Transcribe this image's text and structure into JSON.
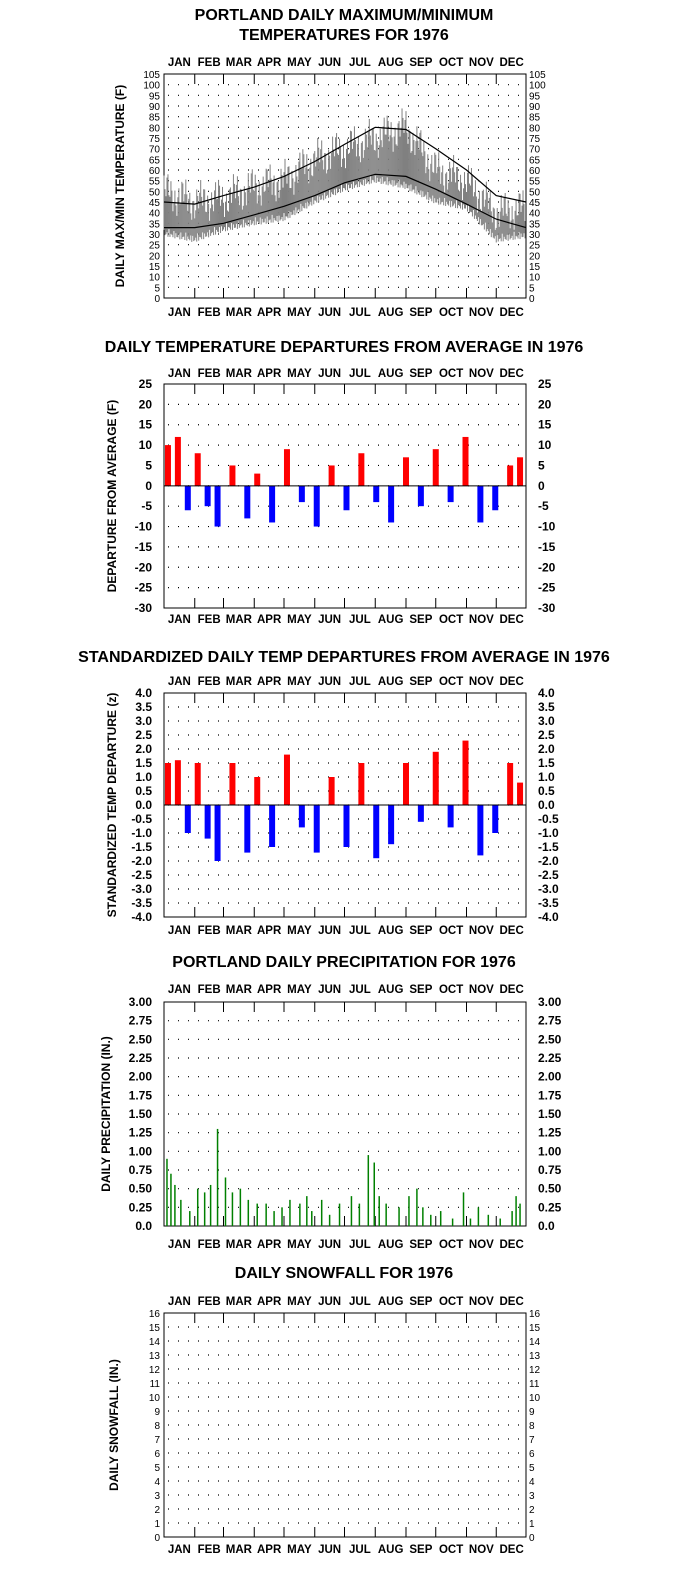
{
  "chart_data": [
    {
      "type": "line",
      "title": "PORTLAND DAILY MAXIMUM/MINIMUM",
      "subtitle": "TEMPERATURES FOR 1976",
      "ylabel": "DAILY MAX/MIN TEMPERATURE (F)",
      "xlabel": "",
      "ylim": [
        0,
        105
      ],
      "yticks": [
        "0",
        "5",
        "10",
        "15",
        "20",
        "25",
        "30",
        "35",
        "40",
        "45",
        "50",
        "55",
        "60",
        "65",
        "70",
        "75",
        "80",
        "85",
        "90",
        "95",
        "100",
        "105"
      ],
      "months": [
        "JAN",
        "FEB",
        "MAR",
        "APR",
        "MAY",
        "JUN",
        "JUL",
        "AUG",
        "SEP",
        "OCT",
        "NOV",
        "DEC"
      ],
      "grid": true,
      "x": [
        1,
        32,
        61,
        92,
        122,
        153,
        183,
        214,
        245,
        275,
        306,
        336,
        366
      ],
      "series": [
        {
          "values": [
            45,
            44,
            48,
            52,
            57,
            64,
            72,
            80,
            79,
            70,
            60,
            48,
            45
          ],
          "color": "#000000",
          "style": "normal-line"
        },
        {
          "values": [
            33,
            33,
            35,
            39,
            43,
            48,
            54,
            58,
            57,
            51,
            44,
            37,
            33
          ],
          "color": "#000000",
          "style": "normal-line"
        },
        {
          "values": [
            50,
            45,
            47,
            52,
            55,
            65,
            70,
            75,
            80,
            60,
            55,
            40,
            42
          ],
          "color": "#808080",
          "style": "band"
        },
        {
          "values": [
            33,
            30,
            35,
            38,
            40,
            48,
            54,
            58,
            55,
            48,
            45,
            30,
            32
          ],
          "color": "#808080",
          "style": "band"
        }
      ],
      "band_color": "#808080"
    },
    {
      "type": "bar",
      "title": "DAILY TEMPERATURE DEPARTURES FROM AVERAGE IN 1976",
      "ylabel": "DEPARTURE FROM AVERAGE (F)",
      "xlabel": "",
      "ylim": [
        -30,
        25
      ],
      "yticks": [
        "-30",
        "-25",
        "-20",
        "-15",
        "-10",
        "-5",
        "0",
        "5",
        "10",
        "15",
        "20",
        "25"
      ],
      "months": [
        "JAN",
        "FEB",
        "MAR",
        "APR",
        "MAY",
        "JUN",
        "JUL",
        "AUG",
        "SEP",
        "OCT",
        "NOV",
        "DEC"
      ],
      "grid": true,
      "x": [
        5,
        15,
        25,
        35,
        45,
        55,
        70,
        85,
        95,
        110,
        125,
        140,
        155,
        170,
        185,
        200,
        215,
        230,
        245,
        260,
        275,
        290,
        305,
        320,
        335,
        350,
        360
      ],
      "values": [
        10,
        12,
        -6,
        8,
        -5,
        -10,
        5,
        -8,
        3,
        -9,
        9,
        -4,
        -10,
        5,
        -6,
        8,
        -4,
        -9,
        7,
        -5,
        9,
        -4,
        12,
        -9,
        -6,
        5,
        7
      ],
      "positive_color": "#ff0000",
      "negative_color": "#0000ff"
    },
    {
      "type": "bar",
      "title": "STANDARDIZED DAILY TEMP DEPARTURES FROM AVERAGE IN 1976",
      "ylabel": "STANDARDIZED TEMP DEPARTURE (z)",
      "xlabel": "",
      "ylim": [
        -4.0,
        4.0
      ],
      "yticks": [
        "-4.0",
        "-3.5",
        "-3.0",
        "-2.5",
        "-2.0",
        "-1.5",
        "-1.0",
        "-0.5",
        "0.0",
        "0.5",
        "1.0",
        "1.5",
        "2.0",
        "2.5",
        "3.0",
        "3.5",
        "4.0"
      ],
      "months": [
        "JAN",
        "FEB",
        "MAR",
        "APR",
        "MAY",
        "JUN",
        "JUL",
        "AUG",
        "SEP",
        "OCT",
        "NOV",
        "DEC"
      ],
      "grid": true,
      "x": [
        5,
        15,
        25,
        35,
        45,
        55,
        70,
        85,
        95,
        110,
        125,
        140,
        155,
        170,
        185,
        200,
        215,
        230,
        245,
        260,
        275,
        290,
        305,
        320,
        335,
        350,
        360
      ],
      "values": [
        1.5,
        1.6,
        -1.0,
        1.5,
        -1.2,
        -2.0,
        1.5,
        -1.7,
        1.0,
        -1.5,
        1.8,
        -0.8,
        -1.7,
        1.0,
        -1.5,
        1.5,
        -1.9,
        -1.4,
        1.5,
        -0.6,
        1.9,
        -0.8,
        2.3,
        -1.8,
        -1.0,
        1.5,
        0.8
      ],
      "positive_color": "#ff0000",
      "negative_color": "#0000ff"
    },
    {
      "type": "bar",
      "title": "PORTLAND DAILY PRECIPITATION FOR 1976",
      "ylabel": "DAILY PRECIPITATION (IN.)",
      "xlabel": "",
      "ylim": [
        0,
        3.0
      ],
      "yticks": [
        "0.0",
        "0.25",
        "0.50",
        "0.75",
        "1.00",
        "1.25",
        "1.50",
        "1.75",
        "2.00",
        "2.25",
        "2.50",
        "2.75",
        "3.00"
      ],
      "months": [
        "JAN",
        "FEB",
        "MAR",
        "APR",
        "MAY",
        "JUN",
        "JUL",
        "AUG",
        "SEP",
        "OCT",
        "NOV",
        "DEC"
      ],
      "grid": true,
      "x": [
        4,
        8,
        12,
        18,
        27,
        35,
        42,
        48,
        55,
        63,
        70,
        78,
        86,
        95,
        104,
        112,
        120,
        128,
        138,
        145,
        150,
        160,
        168,
        178,
        190,
        198,
        207,
        213,
        218,
        225,
        238,
        248,
        256,
        262,
        270,
        280,
        292,
        303,
        310,
        318,
        328,
        340,
        352,
        356,
        360
      ],
      "values": [
        0.9,
        0.7,
        0.55,
        0.35,
        0.2,
        0.5,
        0.45,
        0.55,
        1.3,
        0.65,
        0.45,
        0.5,
        0.35,
        0.3,
        0.3,
        0.2,
        0.25,
        0.35,
        0.3,
        0.4,
        0.2,
        0.35,
        0.15,
        0.3,
        0.4,
        0.3,
        0.95,
        0.85,
        0.4,
        0.3,
        0.25,
        0.4,
        0.5,
        0.25,
        0.15,
        0.2,
        0.1,
        0.45,
        0.1,
        0.25,
        0.15,
        0.1,
        0.2,
        0.4,
        0.3
      ],
      "color": "#008000"
    },
    {
      "type": "bar",
      "title": "DAILY SNOWFALL FOR 1976",
      "ylabel": "DAILY SNOWFALL (IN.)",
      "xlabel": "",
      "ylim": [
        0,
        16
      ],
      "yticks": [
        "0",
        "1",
        "2",
        "3",
        "4",
        "5",
        "6",
        "7",
        "8",
        "9",
        "10",
        "11",
        "12",
        "13",
        "14",
        "15",
        "16"
      ],
      "months": [
        "JAN",
        "FEB",
        "MAR",
        "APR",
        "MAY",
        "JUN",
        "JUL",
        "AUG",
        "SEP",
        "OCT",
        "NOV",
        "DEC"
      ],
      "grid": true,
      "x": [],
      "values": []
    }
  ]
}
